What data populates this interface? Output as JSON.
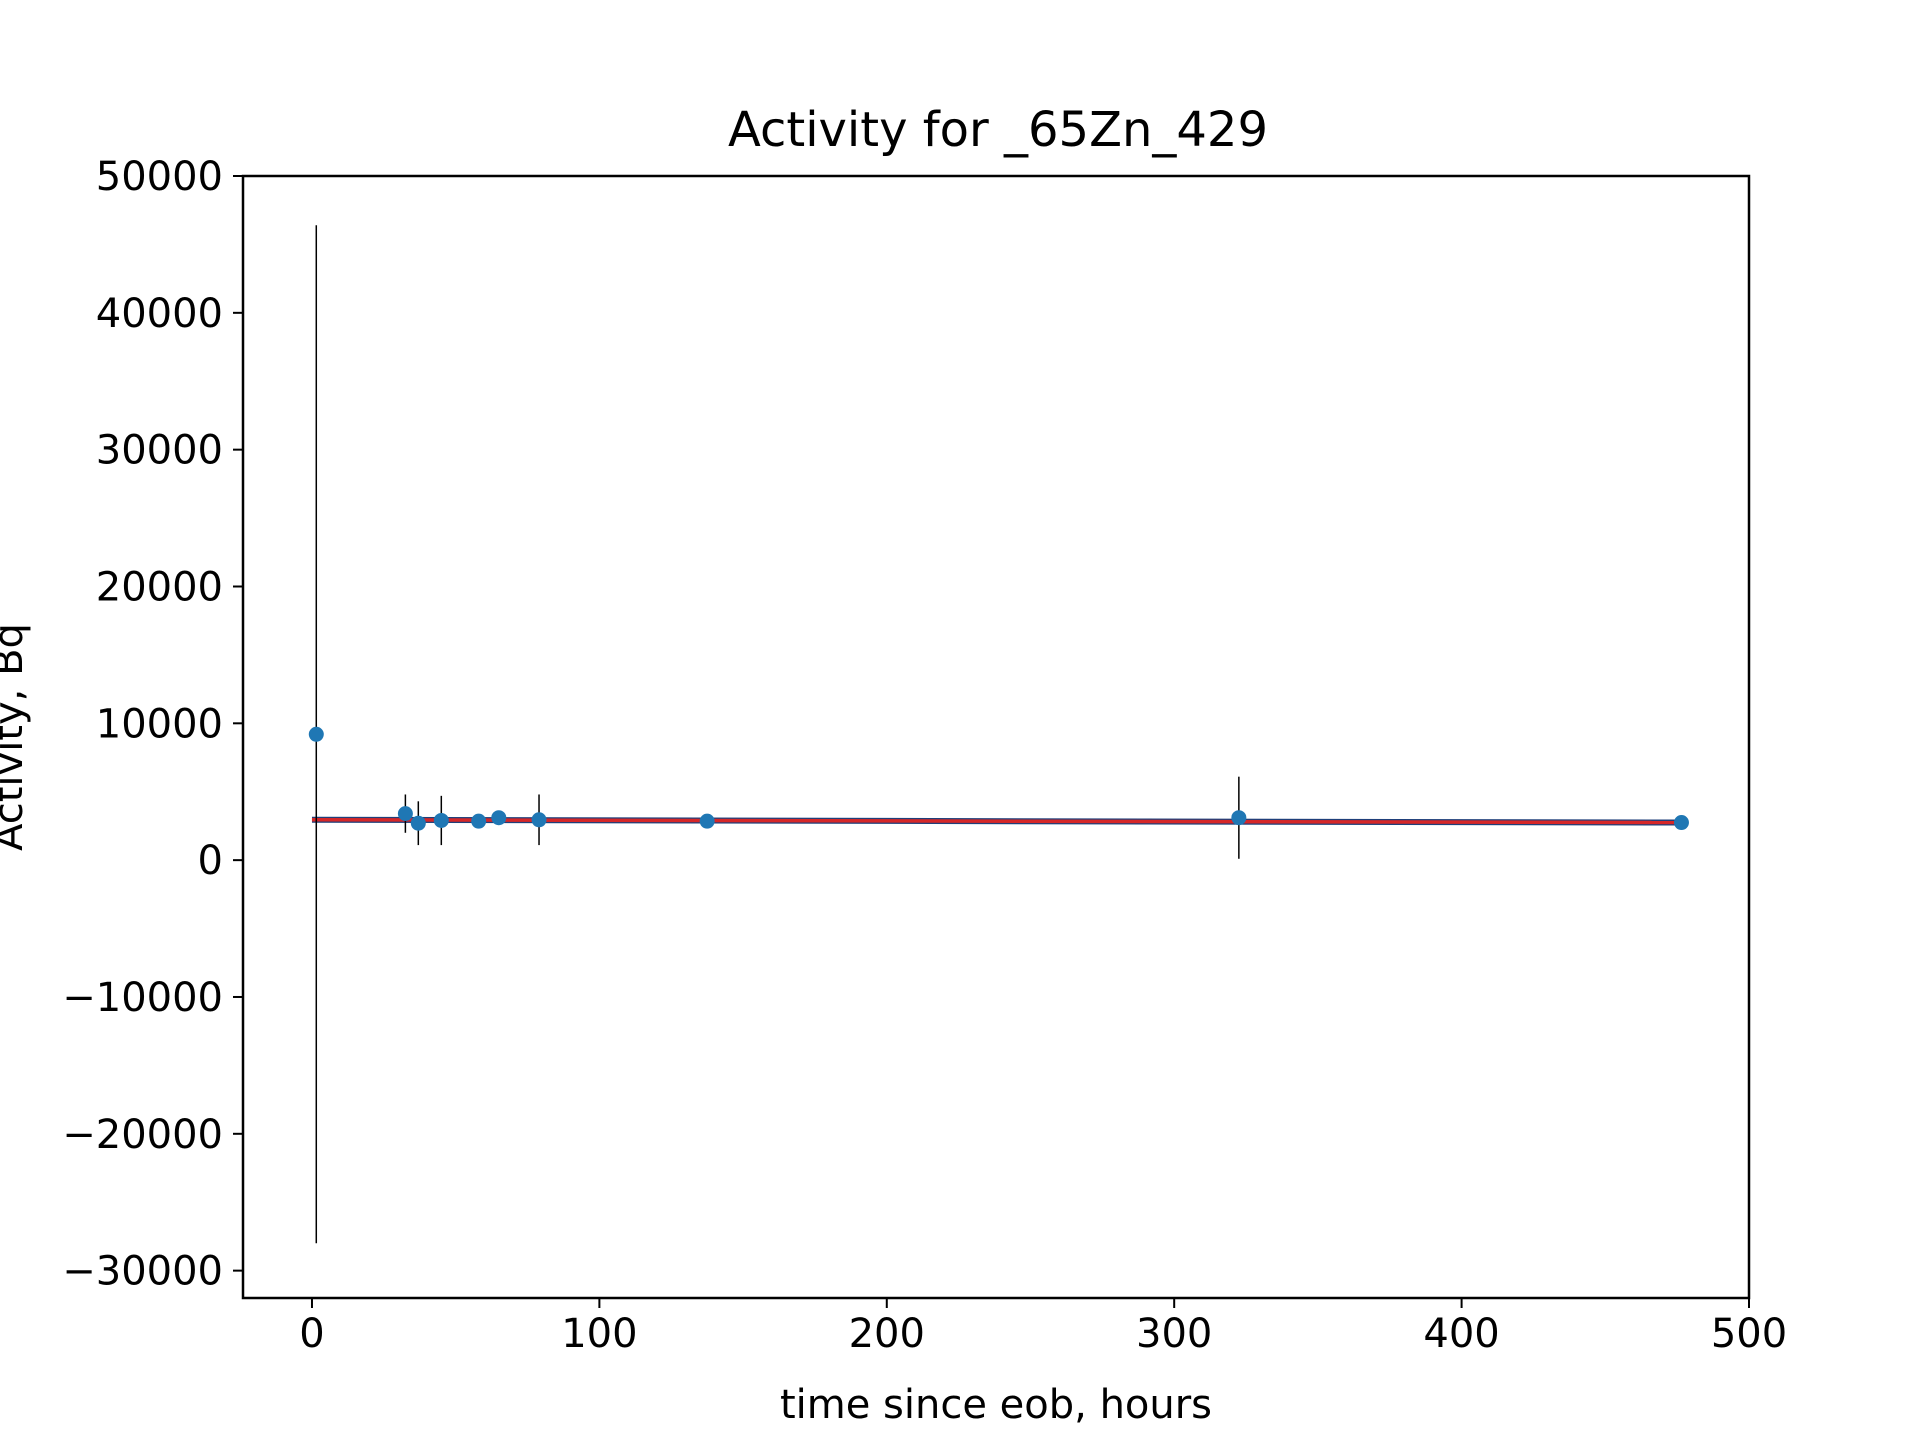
{
  "chart_data": {
    "type": "scatter",
    "title": "Activity for _65Zn_429",
    "xlabel": "time since eob, hours",
    "ylabel": "Activity, Bq",
    "xlim": [
      -24,
      500
    ],
    "ylim": [
      -32000,
      50000
    ],
    "xticks": [
      0,
      100,
      200,
      300,
      400,
      500
    ],
    "xtick_labels": [
      "0",
      "100",
      "200",
      "300",
      "400",
      "500"
    ],
    "yticks": [
      -30000,
      -20000,
      -10000,
      0,
      10000,
      20000,
      30000,
      40000,
      50000
    ],
    "ytick_labels": [
      "−30000",
      "−20000",
      "−10000",
      "0",
      "10000",
      "20000",
      "30000",
      "40000",
      "50000"
    ],
    "grid": false,
    "colors": {
      "points": "#1f77b4",
      "fit": "#d62728",
      "fit_edge": "#1f3f7a",
      "errorbars": "#000000"
    },
    "points": [
      {
        "x": 1.5,
        "y": 9200,
        "yerr_low": 37200,
        "yerr_high": 37200
      },
      {
        "x": 32.5,
        "y": 3400,
        "yerr_low": 1400,
        "yerr_high": 1400
      },
      {
        "x": 37,
        "y": 2700,
        "yerr_low": 1600,
        "yerr_high": 1600
      },
      {
        "x": 45,
        "y": 2900,
        "yerr_low": 1800,
        "yerr_high": 1800
      },
      {
        "x": 58,
        "y": 2850,
        "yerr_low": 450,
        "yerr_high": 450
      },
      {
        "x": 65,
        "y": 3100,
        "yerr_low": 350,
        "yerr_high": 350
      },
      {
        "x": 79,
        "y": 2950,
        "yerr_low": 1850,
        "yerr_high": 1850
      },
      {
        "x": 137.5,
        "y": 2850,
        "yerr_low": 250,
        "yerr_high": 250
      },
      {
        "x": 322.5,
        "y": 3100,
        "yerr_low": 3000,
        "yerr_high": 3000
      },
      {
        "x": 476.5,
        "y": 2750,
        "yerr_low": 150,
        "yerr_high": 150
      }
    ],
    "fit_line": {
      "x": [
        0,
        476.5
      ],
      "y": [
        2950,
        2750
      ]
    }
  }
}
